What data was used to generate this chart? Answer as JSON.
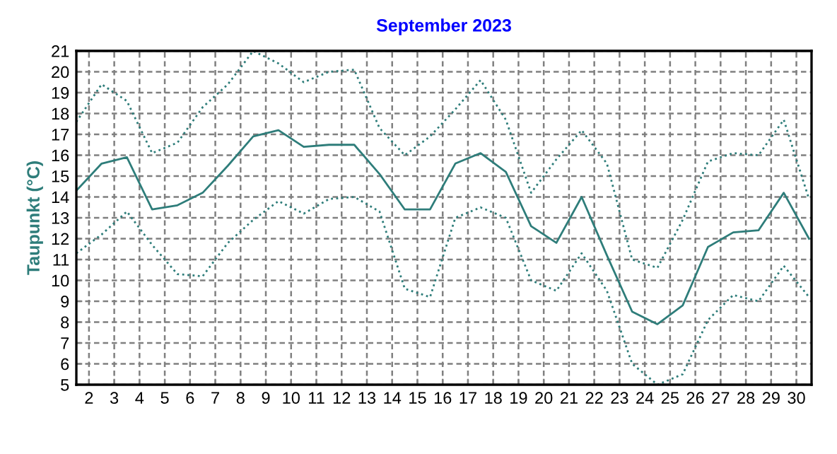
{
  "chart_data": {
    "type": "line",
    "title": "September 2023",
    "ylabel": "Taupunkt (°C)",
    "x": [
      1.5,
      2.5,
      3.5,
      4.5,
      5.5,
      6.5,
      7.5,
      8.5,
      9.5,
      10.5,
      11.5,
      12.5,
      13.5,
      14.5,
      15.5,
      16.5,
      17.5,
      18.5,
      19.5,
      20.5,
      21.5,
      22.5,
      23.5,
      24.5,
      25.5,
      26.5,
      27.5,
      28.5,
      29.5,
      30.5
    ],
    "series": [
      {
        "color": "#2e7d7a",
        "line_style": "dotted",
        "values": [
          17.6,
          19.4,
          18.6,
          16.1,
          16.6,
          18.3,
          19.4,
          21.0,
          20.4,
          19.5,
          20.0,
          20.1,
          17.3,
          16.0,
          16.9,
          18.2,
          19.6,
          17.7,
          14.2,
          15.8,
          17.2,
          15.6,
          11.0,
          10.6,
          12.9,
          15.7,
          16.1,
          16.0,
          17.7,
          13.9
        ]
      },
      {
        "color": "#2e7d7a",
        "line_style": "solid",
        "values": [
          14.3,
          15.6,
          15.9,
          13.4,
          13.6,
          14.2,
          15.5,
          16.9,
          17.2,
          16.4,
          16.5,
          16.5,
          15.1,
          13.4,
          13.4,
          15.6,
          16.1,
          15.2,
          12.6,
          11.8,
          14.0,
          11.2,
          8.5,
          7.9,
          8.8,
          11.6,
          12.3,
          12.4,
          14.2,
          12.0
        ]
      },
      {
        "color": "#2e7d7a",
        "line_style": "dotted",
        "values": [
          11.3,
          12.2,
          13.3,
          11.7,
          10.3,
          10.2,
          11.8,
          12.9,
          13.8,
          13.2,
          13.9,
          14.0,
          13.3,
          9.6,
          9.2,
          13.0,
          13.5,
          13.0,
          10.0,
          9.5,
          11.3,
          9.5,
          6.0,
          5.0,
          5.5,
          8.1,
          9.3,
          9.0,
          10.7,
          9.2
        ]
      }
    ],
    "xlim": [
      1.5,
      30.6
    ],
    "ylim": [
      5,
      21
    ],
    "xticks": [
      2,
      3,
      4,
      5,
      6,
      7,
      8,
      9,
      10,
      11,
      12,
      13,
      14,
      15,
      16,
      17,
      18,
      19,
      20,
      21,
      22,
      23,
      24,
      25,
      26,
      27,
      28,
      29,
      30
    ],
    "yticks": [
      5,
      6,
      7,
      8,
      9,
      10,
      11,
      12,
      13,
      14,
      15,
      16,
      17,
      18,
      19,
      20,
      21
    ],
    "grid": true,
    "marker": "none"
  }
}
